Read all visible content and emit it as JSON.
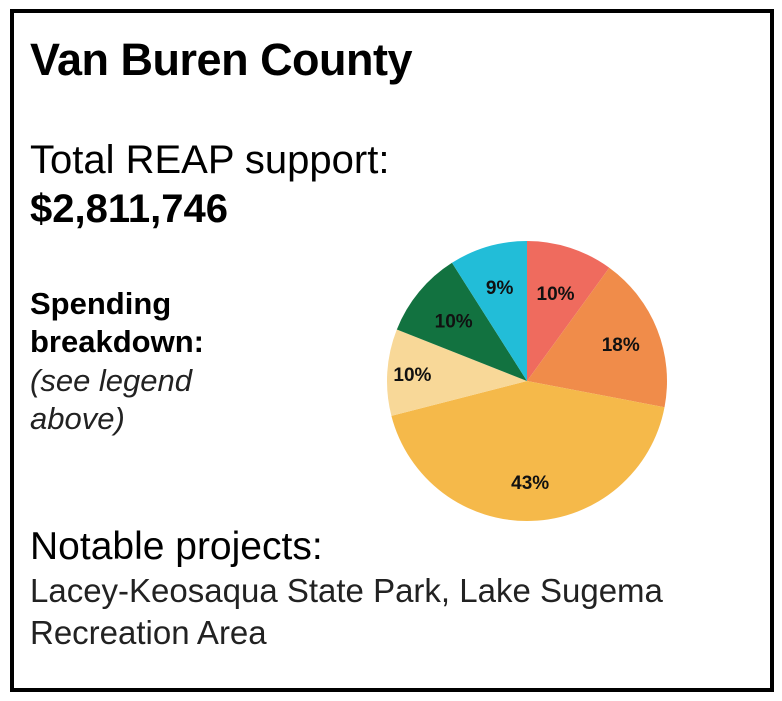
{
  "card": {
    "title": "Van Buren County",
    "support_label": "Total REAP support:",
    "support_value": "$2,811,746",
    "spending_heading": "Spending breakdown:",
    "spending_note": "(see legend above)",
    "projects_heading": "Notable projects:",
    "projects_text": "Lacey-Keosaqua State Park, Lake Sugema Recreation Area"
  },
  "chart_data": {
    "type": "pie",
    "slices": [
      {
        "label": "10%",
        "value": 10,
        "color": "#ef6b5e"
      },
      {
        "label": "18%",
        "value": 18,
        "color": "#f08c4a"
      },
      {
        "label": "43%",
        "value": 43,
        "color": "#f5b94a"
      },
      {
        "label": "10%",
        "value": 10,
        "color": "#f8d898"
      },
      {
        "label": "10%",
        "value": 10,
        "color": "#127240"
      },
      {
        "label": "9%",
        "value": 9,
        "color": "#22bdd8"
      }
    ]
  }
}
